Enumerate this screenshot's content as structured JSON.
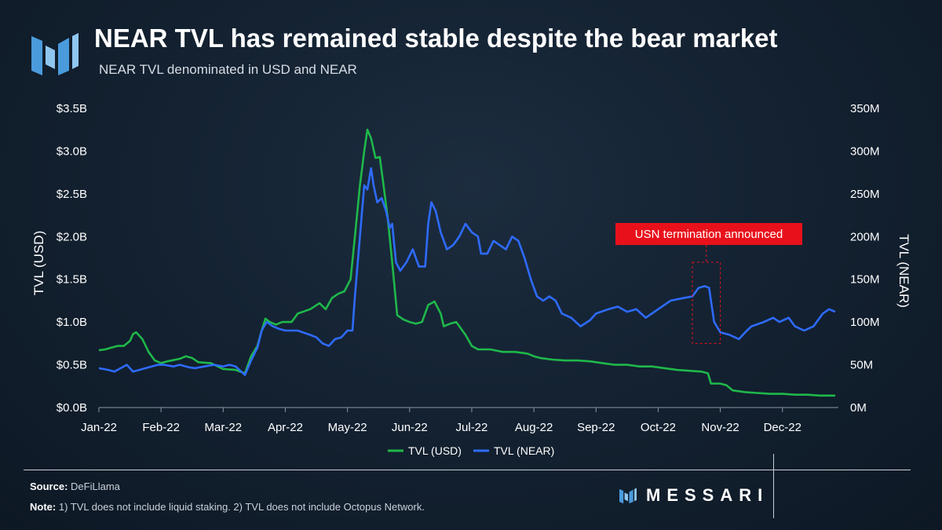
{
  "header": {
    "title": "NEAR TVL has remained stable despite the bear market",
    "subtitle": "NEAR TVL denominated in USD and NEAR",
    "logo_icon": "messari-m-logo-icon"
  },
  "footer": {
    "source_label": "Source:",
    "source_value": "DeFiLlama",
    "note_label": "Note:",
    "note_value": "1) TVL does not include liquid staking. 2) TVL does not include Octopus Network.",
    "brand": "MESSARI"
  },
  "colors": {
    "usd_line": "#1fb84a",
    "near_line": "#2e6bff",
    "annotation_bg": "#e8111b",
    "annotation_box": "#e8111b",
    "grid": "#2a3a4c",
    "text": "#ffffff",
    "brand_blue": "#3d86d6"
  },
  "chart_data": {
    "type": "line",
    "title": "NEAR TVL has remained stable despite the bear market",
    "subtitle": "NEAR TVL denominated in USD and NEAR",
    "x_tick_labels": [
      "Jan-22",
      "Feb-22",
      "Mar-22",
      "Apr-22",
      "May-22",
      "Jun-22",
      "Jul-22",
      "Aug-22",
      "Sep-22",
      "Oct-22",
      "Nov-22",
      "Dec-22"
    ],
    "y_left": {
      "label": "TVL (USD)",
      "min": 0,
      "max": 3.5,
      "unit": "B",
      "tick_labels": [
        "$0.0B",
        "$0.5B",
        "$1.0B",
        "$1.5B",
        "$2.0B",
        "$2.5B",
        "$3.0B",
        "$3.5B"
      ]
    },
    "y_right": {
      "label": "TVL (NEAR)",
      "min": 0,
      "max": 350,
      "unit": "M",
      "tick_labels": [
        "0M",
        "50M",
        "100M",
        "150M",
        "200M",
        "250M",
        "300M",
        "350M"
      ]
    },
    "x_range_months": [
      0,
      11.9
    ],
    "legend": [
      "TVL (USD)",
      "TVL (NEAR)"
    ],
    "legend_position": "bottom-center",
    "grid": false,
    "annotation": {
      "text": "USN termination announced",
      "x_start": 9.55,
      "x_end": 10.0,
      "y_low_near": 75,
      "y_high_near": 170
    },
    "series": [
      {
        "name": "TVL (USD)",
        "axis": "left",
        "points": [
          [
            0,
            0.67
          ],
          [
            0.1,
            0.68
          ],
          [
            0.2,
            0.7
          ],
          [
            0.3,
            0.72
          ],
          [
            0.4,
            0.72
          ],
          [
            0.5,
            0.78
          ],
          [
            0.55,
            0.86
          ],
          [
            0.6,
            0.88
          ],
          [
            0.7,
            0.8
          ],
          [
            0.8,
            0.65
          ],
          [
            0.9,
            0.55
          ],
          [
            1.0,
            0.52
          ],
          [
            1.1,
            0.54
          ],
          [
            1.3,
            0.57
          ],
          [
            1.4,
            0.6
          ],
          [
            1.5,
            0.58
          ],
          [
            1.6,
            0.53
          ],
          [
            1.8,
            0.52
          ],
          [
            2.0,
            0.45
          ],
          [
            2.2,
            0.44
          ],
          [
            2.35,
            0.4
          ],
          [
            2.45,
            0.6
          ],
          [
            2.55,
            0.72
          ],
          [
            2.62,
            0.9
          ],
          [
            2.68,
            1.04
          ],
          [
            2.75,
            1.0
          ],
          [
            2.85,
            0.97
          ],
          [
            2.95,
            1.0
          ],
          [
            3.1,
            1.0
          ],
          [
            3.2,
            1.1
          ],
          [
            3.4,
            1.15
          ],
          [
            3.55,
            1.22
          ],
          [
            3.65,
            1.15
          ],
          [
            3.75,
            1.28
          ],
          [
            3.85,
            1.33
          ],
          [
            3.95,
            1.36
          ],
          [
            4.05,
            1.5
          ],
          [
            4.12,
            2.0
          ],
          [
            4.2,
            2.6
          ],
          [
            4.27,
            3.0
          ],
          [
            4.32,
            3.25
          ],
          [
            4.38,
            3.15
          ],
          [
            4.45,
            2.92
          ],
          [
            4.52,
            2.93
          ],
          [
            4.58,
            2.6
          ],
          [
            4.65,
            2.2
          ],
          [
            4.72,
            1.7
          ],
          [
            4.8,
            1.08
          ],
          [
            4.9,
            1.03
          ],
          [
            5.0,
            1.0
          ],
          [
            5.1,
            0.98
          ],
          [
            5.2,
            1.0
          ],
          [
            5.3,
            1.2
          ],
          [
            5.4,
            1.24
          ],
          [
            5.5,
            1.1
          ],
          [
            5.55,
            0.95
          ],
          [
            5.65,
            0.98
          ],
          [
            5.75,
            1.0
          ],
          [
            5.9,
            0.85
          ],
          [
            6.0,
            0.72
          ],
          [
            6.1,
            0.68
          ],
          [
            6.3,
            0.68
          ],
          [
            6.5,
            0.65
          ],
          [
            6.7,
            0.65
          ],
          [
            6.9,
            0.63
          ],
          [
            7.0,
            0.6
          ],
          [
            7.1,
            0.58
          ],
          [
            7.3,
            0.56
          ],
          [
            7.5,
            0.55
          ],
          [
            7.7,
            0.55
          ],
          [
            7.9,
            0.54
          ],
          [
            8.1,
            0.52
          ],
          [
            8.3,
            0.5
          ],
          [
            8.5,
            0.5
          ],
          [
            8.7,
            0.48
          ],
          [
            8.9,
            0.48
          ],
          [
            9.1,
            0.46
          ],
          [
            9.3,
            0.44
          ],
          [
            9.5,
            0.43
          ],
          [
            9.7,
            0.42
          ],
          [
            9.8,
            0.4
          ],
          [
            9.85,
            0.28
          ],
          [
            10.0,
            0.28
          ],
          [
            10.1,
            0.26
          ],
          [
            10.2,
            0.2
          ],
          [
            10.4,
            0.18
          ],
          [
            10.6,
            0.17
          ],
          [
            10.8,
            0.16
          ],
          [
            11.0,
            0.16
          ],
          [
            11.2,
            0.15
          ],
          [
            11.4,
            0.15
          ],
          [
            11.6,
            0.14
          ],
          [
            11.85,
            0.14
          ]
        ]
      },
      {
        "name": "TVL (NEAR)",
        "axis": "right",
        "points": [
          [
            0,
            46
          ],
          [
            0.15,
            44
          ],
          [
            0.25,
            42
          ],
          [
            0.35,
            46
          ],
          [
            0.45,
            50
          ],
          [
            0.55,
            42
          ],
          [
            0.65,
            44
          ],
          [
            0.75,
            46
          ],
          [
            0.85,
            48
          ],
          [
            0.95,
            50
          ],
          [
            1.05,
            50
          ],
          [
            1.2,
            48
          ],
          [
            1.3,
            50
          ],
          [
            1.45,
            47
          ],
          [
            1.55,
            46
          ],
          [
            1.7,
            48
          ],
          [
            1.85,
            50
          ],
          [
            2.0,
            48
          ],
          [
            2.1,
            50
          ],
          [
            2.2,
            48
          ],
          [
            2.35,
            38
          ],
          [
            2.45,
            55
          ],
          [
            2.55,
            70
          ],
          [
            2.62,
            90
          ],
          [
            2.7,
            100
          ],
          [
            2.8,
            95
          ],
          [
            2.9,
            92
          ],
          [
            3.0,
            90
          ],
          [
            3.2,
            90
          ],
          [
            3.4,
            85
          ],
          [
            3.5,
            82
          ],
          [
            3.6,
            75
          ],
          [
            3.7,
            72
          ],
          [
            3.8,
            80
          ],
          [
            3.9,
            82
          ],
          [
            4.0,
            90
          ],
          [
            4.08,
            90
          ],
          [
            4.12,
            130
          ],
          [
            4.2,
            200
          ],
          [
            4.27,
            260
          ],
          [
            4.32,
            255
          ],
          [
            4.38,
            280
          ],
          [
            4.42,
            260
          ],
          [
            4.48,
            240
          ],
          [
            4.55,
            245
          ],
          [
            4.62,
            230
          ],
          [
            4.68,
            210
          ],
          [
            4.72,
            215
          ],
          [
            4.78,
            170
          ],
          [
            4.85,
            160
          ],
          [
            4.95,
            170
          ],
          [
            5.05,
            185
          ],
          [
            5.15,
            165
          ],
          [
            5.25,
            165
          ],
          [
            5.3,
            215
          ],
          [
            5.35,
            240
          ],
          [
            5.42,
            230
          ],
          [
            5.5,
            205
          ],
          [
            5.6,
            185
          ],
          [
            5.7,
            190
          ],
          [
            5.8,
            200
          ],
          [
            5.9,
            215
          ],
          [
            6.0,
            205
          ],
          [
            6.1,
            200
          ],
          [
            6.15,
            180
          ],
          [
            6.25,
            180
          ],
          [
            6.35,
            195
          ],
          [
            6.45,
            190
          ],
          [
            6.55,
            185
          ],
          [
            6.65,
            200
          ],
          [
            6.75,
            195
          ],
          [
            6.85,
            175
          ],
          [
            6.95,
            150
          ],
          [
            7.05,
            130
          ],
          [
            7.15,
            125
          ],
          [
            7.25,
            130
          ],
          [
            7.35,
            125
          ],
          [
            7.45,
            110
          ],
          [
            7.6,
            105
          ],
          [
            7.75,
            95
          ],
          [
            7.9,
            102
          ],
          [
            8.0,
            110
          ],
          [
            8.2,
            115
          ],
          [
            8.35,
            118
          ],
          [
            8.5,
            112
          ],
          [
            8.65,
            115
          ],
          [
            8.8,
            105
          ],
          [
            9.0,
            115
          ],
          [
            9.2,
            125
          ],
          [
            9.4,
            128
          ],
          [
            9.55,
            130
          ],
          [
            9.65,
            140
          ],
          [
            9.75,
            142
          ],
          [
            9.82,
            140
          ],
          [
            9.9,
            100
          ],
          [
            10.0,
            88
          ],
          [
            10.15,
            85
          ],
          [
            10.3,
            80
          ],
          [
            10.4,
            88
          ],
          [
            10.5,
            95
          ],
          [
            10.7,
            100
          ],
          [
            10.85,
            105
          ],
          [
            10.95,
            100
          ],
          [
            11.1,
            105
          ],
          [
            11.2,
            95
          ],
          [
            11.35,
            90
          ],
          [
            11.5,
            95
          ],
          [
            11.65,
            110
          ],
          [
            11.75,
            115
          ],
          [
            11.85,
            112
          ]
        ]
      }
    ]
  }
}
